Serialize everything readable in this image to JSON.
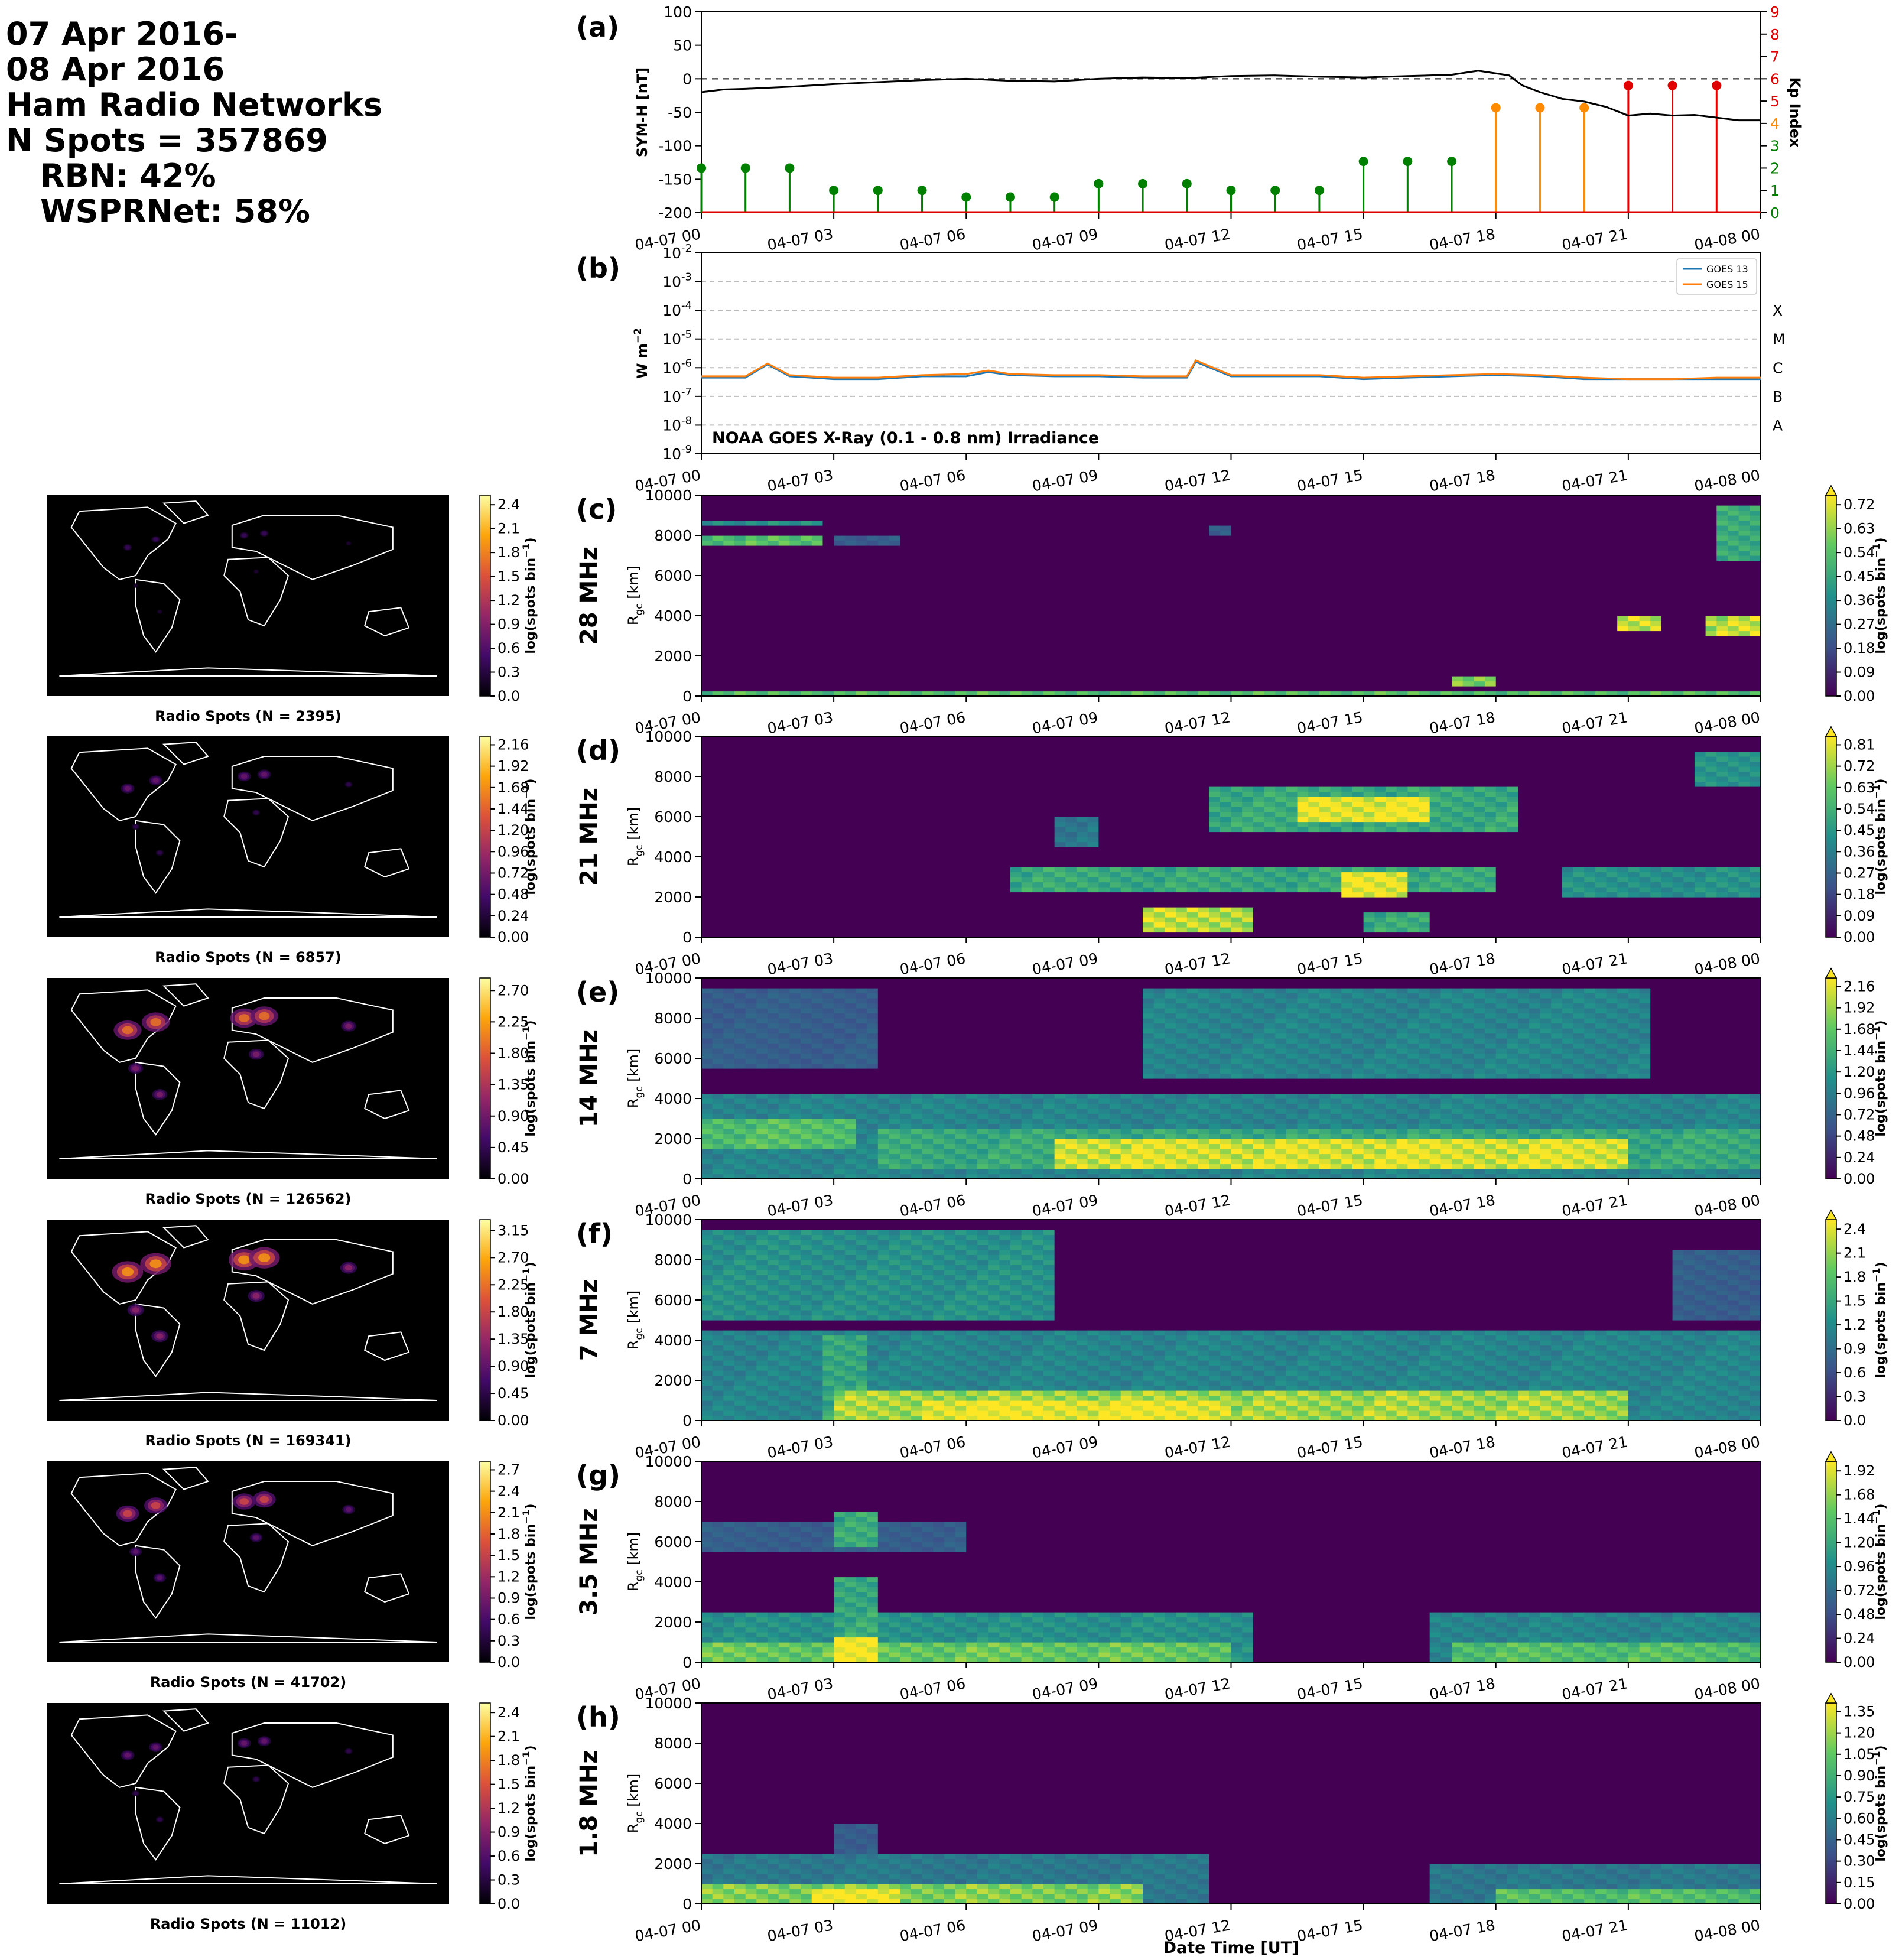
{
  "header": {
    "lines": [
      "07 Apr 2016-",
      "08 Apr 2016",
      "Ham Radio Networks",
      "N Spots = 357869",
      "RBN: 42%",
      "WSPRNet: 58%"
    ]
  },
  "colors": {
    "symh_line": "#000000",
    "kp_quiet": "#008000",
    "kp_active": "#FF8C00",
    "kp_storm": "#E00000",
    "goes13": "#1f77b4",
    "goes15": "#ff7f0e",
    "viridis": [
      "#440154",
      "#3b528b",
      "#21918c",
      "#5ec962",
      "#fde725"
    ],
    "inferno": [
      "#000004",
      "#420a68",
      "#932667",
      "#dd513a",
      "#fca50a",
      "#fcffa4"
    ]
  },
  "time_ticks": [
    "04-07 00",
    "04-07 03",
    "04-07 06",
    "04-07 09",
    "04-07 12",
    "04-07 15",
    "04-07 18",
    "04-07 21",
    "04-08 00"
  ],
  "xlabel": "Date Time [UT]",
  "chart_data": [
    {
      "id": "a",
      "panel_label": "(a)",
      "type": "line",
      "ylabel": "SYM-H [nT]",
      "ylim": [
        -200,
        100
      ],
      "yticks": [
        100,
        50,
        0,
        -50,
        -100,
        -150,
        -200
      ],
      "reference_line": 0,
      "series": [
        {
          "x_hours": [
            0,
            0.5,
            1,
            2,
            3,
            4,
            5,
            6,
            7,
            8,
            9,
            10,
            11,
            12,
            13,
            14,
            15,
            16,
            17,
            17.6,
            18,
            18.3,
            18.6,
            19,
            19.5,
            20,
            20.5,
            21,
            21.5,
            22,
            22.5,
            23,
            23.5,
            24
          ],
          "values": [
            -20,
            -16,
            -15,
            -12,
            -8,
            -5,
            -2,
            0,
            -3,
            -4,
            0,
            2,
            1,
            4,
            5,
            3,
            2,
            4,
            6,
            12,
            8,
            5,
            -10,
            -20,
            -30,
            -34,
            -42,
            -55,
            -52,
            -55,
            -54,
            -58,
            -62,
            -62
          ]
        }
      ],
      "secondary": {
        "ylabel": "Kp Index",
        "ylim": [
          0,
          9
        ],
        "yticks": [
          0,
          1,
          2,
          3,
          4,
          5,
          6,
          7,
          8,
          9
        ],
        "type": "stem",
        "x_hours": [
          0,
          1,
          2,
          3,
          4,
          5,
          6,
          7,
          8,
          9,
          10,
          11,
          12,
          13,
          14,
          15,
          16,
          17,
          18,
          19,
          20,
          21,
          22,
          23
        ],
        "values": [
          2,
          2,
          2,
          1,
          1,
          1,
          0.7,
          0.7,
          0.7,
          1.3,
          1.3,
          1.3,
          1,
          1,
          1,
          2.3,
          2.3,
          2.3,
          4.7,
          4.7,
          4.7,
          5.7,
          5.7,
          5.7
        ]
      }
    },
    {
      "id": "b",
      "panel_label": "(b)",
      "type": "line",
      "ylabel": "W m",
      "ylabel_sup": "−2",
      "yscale": "log",
      "ylim": [
        1e-09,
        0.01
      ],
      "yticks": [
        "10^-9",
        "10^-8",
        "10^-7",
        "10^-6",
        "10^-5",
        "10^-4",
        "10^-3",
        "10^-2"
      ],
      "flare_classes": [
        "A",
        "B",
        "C",
        "M",
        "X"
      ],
      "annotation": "NOAA GOES X-Ray (0.1 - 0.8 nm) Irradiance",
      "series": [
        {
          "name": "GOES 13",
          "x_hours": [
            0,
            1,
            1.5,
            2,
            3,
            4,
            5,
            6,
            6.5,
            7,
            8,
            9,
            10,
            11,
            11.2,
            12,
            13,
            14,
            15,
            16,
            17,
            18,
            19,
            20,
            21,
            22,
            23,
            24
          ],
          "values": [
            4.5e-07,
            4.5e-07,
            1.3e-06,
            5e-07,
            4e-07,
            4e-07,
            5e-07,
            5e-07,
            7e-07,
            5.5e-07,
            5e-07,
            5e-07,
            4.5e-07,
            4.5e-07,
            1.6e-06,
            5e-07,
            5e-07,
            5e-07,
            4e-07,
            4.5e-07,
            5e-07,
            5.5e-07,
            5e-07,
            4e-07,
            4e-07,
            4e-07,
            4e-07,
            4e-07
          ]
        },
        {
          "name": "GOES 15",
          "x_hours": [
            0,
            1,
            1.5,
            2,
            3,
            4,
            5,
            6,
            6.5,
            7,
            8,
            9,
            10,
            11,
            11.2,
            12,
            13,
            14,
            15,
            16,
            17,
            18,
            19,
            20,
            21,
            22,
            23,
            24
          ],
          "values": [
            5e-07,
            5e-07,
            1.4e-06,
            5.5e-07,
            4.5e-07,
            4.5e-07,
            5.5e-07,
            6e-07,
            8e-07,
            6e-07,
            5.5e-07,
            5.5e-07,
            5e-07,
            5e-07,
            1.8e-06,
            5.5e-07,
            5.5e-07,
            5.5e-07,
            4.5e-07,
            5e-07,
            5.5e-07,
            6e-07,
            5.5e-07,
            4.5e-07,
            4e-07,
            4e-07,
            4.5e-07,
            4.5e-07
          ]
        }
      ]
    },
    {
      "id": "c",
      "panel_label": "(c)",
      "band": "28 MHz",
      "type": "heatmap",
      "map_caption": "Radio Spots (N = 2395)",
      "ylabel": "R",
      "ylabel_sub": "gc",
      "ylabel_unit": " [km]",
      "ylim": [
        0,
        10000
      ],
      "yticks": [
        0,
        2000,
        4000,
        6000,
        8000,
        10000
      ],
      "map_cbar_ticks": [
        "0.0",
        "0.3",
        "0.6",
        "0.9",
        "1.2",
        "1.5",
        "1.8",
        "2.1",
        "2.4"
      ],
      "cbar_ticks": [
        "0.00",
        "0.09",
        "0.18",
        "0.27",
        "0.36",
        "0.45",
        "0.54",
        "0.63",
        "0.72"
      ],
      "cbar_label": "log(spots bin",
      "cbar_sup": "−1",
      "cbar_label_end": ")",
      "features": [
        [
          0,
          24,
          0,
          250,
          0.7
        ],
        [
          0,
          2.8,
          7500,
          8000,
          0.7
        ],
        [
          0,
          2.8,
          8400,
          8800,
          0.5
        ],
        [
          20.7,
          21.8,
          3300,
          4000,
          0.9
        ],
        [
          22.8,
          24,
          3000,
          4000,
          0.9
        ],
        [
          23,
          24,
          6800,
          9500,
          0.6
        ],
        [
          17,
          18,
          600,
          1000,
          0.8
        ],
        [
          3,
          4.5,
          7600,
          8000,
          0.3
        ],
        [
          11.5,
          12,
          8000,
          8400,
          0.3
        ]
      ]
    },
    {
      "id": "d",
      "panel_label": "(d)",
      "band": "21 MHz",
      "type": "heatmap",
      "map_caption": "Radio Spots (N = 6857)",
      "ylabel": "R",
      "ylabel_sub": "gc",
      "ylabel_unit": " [km]",
      "ylim": [
        0,
        10000
      ],
      "yticks": [
        0,
        2000,
        4000,
        6000,
        8000,
        10000
      ],
      "map_cbar_ticks": [
        "0.00",
        "0.24",
        "0.48",
        "0.72",
        "0.96",
        "1.20",
        "1.44",
        "1.68",
        "1.92",
        "2.16"
      ],
      "cbar_ticks": [
        "0.00",
        "0.09",
        "0.18",
        "0.27",
        "0.36",
        "0.45",
        "0.54",
        "0.63",
        "0.72",
        "0.81"
      ],
      "cbar_label": "log(spots bin",
      "cbar_sup": "−1",
      "cbar_label_end": ")",
      "features": [
        [
          11.5,
          18.5,
          5200,
          7500,
          0.6
        ],
        [
          13.5,
          16.5,
          5700,
          7000,
          1.0
        ],
        [
          7,
          18,
          2300,
          3500,
          0.6
        ],
        [
          14.5,
          16,
          2000,
          3200,
          1.0
        ],
        [
          10,
          12.5,
          300,
          1500,
          0.9
        ],
        [
          15,
          16.5,
          300,
          1200,
          0.6
        ],
        [
          19.5,
          24,
          2000,
          3500,
          0.5
        ],
        [
          22.5,
          24,
          7500,
          9300,
          0.5
        ],
        [
          8,
          9,
          4500,
          6000,
          0.4
        ]
      ]
    },
    {
      "id": "e",
      "panel_label": "(e)",
      "band": "14 MHz",
      "type": "heatmap",
      "map_caption": "Radio Spots (N = 126562)",
      "ylabel": "R",
      "ylabel_sub": "gc",
      "ylabel_unit": " [km]",
      "ylim": [
        0,
        10000
      ],
      "yticks": [
        0,
        2000,
        4000,
        6000,
        8000,
        10000
      ],
      "map_cbar_ticks": [
        "0.00",
        "0.45",
        "0.90",
        "1.35",
        "1.80",
        "2.25",
        "2.70"
      ],
      "cbar_ticks": [
        "0.00",
        "0.24",
        "0.48",
        "0.72",
        "0.96",
        "1.20",
        "1.44",
        "1.68",
        "1.92",
        "2.16"
      ],
      "cbar_label": "log(spots bin",
      "cbar_sup": "−1",
      "cbar_label_end": ")",
      "features": [
        [
          0,
          24,
          0,
          4200,
          0.45
        ],
        [
          0,
          3.5,
          1500,
          3000,
          0.7
        ],
        [
          4,
          24,
          600,
          2500,
          0.6
        ],
        [
          8,
          21,
          500,
          2000,
          0.95
        ],
        [
          10,
          21.5,
          5000,
          9500,
          0.45
        ],
        [
          0,
          4,
          5500,
          9500,
          0.3
        ]
      ]
    },
    {
      "id": "f",
      "panel_label": "(f)",
      "band": "7 MHz",
      "type": "heatmap",
      "map_caption": "Radio Spots (N = 169341)",
      "ylabel": "R",
      "ylabel_sub": "gc",
      "ylabel_unit": " [km]",
      "ylim": [
        0,
        10000
      ],
      "yticks": [
        0,
        2000,
        4000,
        6000,
        8000,
        10000
      ],
      "map_cbar_ticks": [
        "0.00",
        "0.45",
        "0.90",
        "1.35",
        "1.80",
        "2.25",
        "2.70",
        "3.15"
      ],
      "cbar_ticks": [
        "0.0",
        "0.3",
        "0.6",
        "0.9",
        "1.2",
        "1.5",
        "1.8",
        "2.1",
        "2.4"
      ],
      "cbar_label": "log(spots bin",
      "cbar_sup": "−1",
      "cbar_label_end": ")",
      "features": [
        [
          0,
          8,
          5000,
          9500,
          0.5
        ],
        [
          0,
          24,
          0,
          4500,
          0.45
        ],
        [
          3,
          21,
          0,
          1500,
          0.85
        ],
        [
          5,
          12,
          0,
          1000,
          1.0
        ],
        [
          2.8,
          3.8,
          0,
          4200,
          0.6
        ],
        [
          22,
          24,
          5000,
          8500,
          0.3
        ]
      ]
    },
    {
      "id": "g",
      "panel_label": "(g)",
      "band": "3.5 MHz",
      "type": "heatmap",
      "map_caption": "Radio Spots (N = 41702)",
      "ylabel": "R",
      "ylabel_sub": "gc",
      "ylabel_unit": " [km]",
      "ylim": [
        0,
        10000
      ],
      "yticks": [
        0,
        2000,
        4000,
        6000,
        8000,
        10000
      ],
      "map_cbar_ticks": [
        "0.0",
        "0.3",
        "0.6",
        "0.9",
        "1.2",
        "1.5",
        "1.8",
        "2.1",
        "2.4",
        "2.7"
      ],
      "cbar_ticks": [
        "0.00",
        "0.24",
        "0.48",
        "0.72",
        "0.96",
        "1.20",
        "1.44",
        "1.68",
        "1.92"
      ],
      "cbar_label": "log(spots bin",
      "cbar_sup": "−1",
      "cbar_label_end": ")",
      "features": [
        [
          0,
          12.5,
          0,
          2500,
          0.5
        ],
        [
          0,
          12,
          0,
          1000,
          0.75
        ],
        [
          3,
          4,
          0,
          1300,
          1.0
        ],
        [
          3,
          4,
          1300,
          4200,
          0.6
        ],
        [
          3,
          4,
          5700,
          7500,
          0.6
        ],
        [
          0,
          6,
          5500,
          7000,
          0.3
        ],
        [
          16.5,
          24,
          0,
          2500,
          0.45
        ],
        [
          17,
          24,
          0,
          900,
          0.7
        ]
      ]
    },
    {
      "id": "h",
      "panel_label": "(h)",
      "band": "1.8 MHz",
      "type": "heatmap",
      "map_caption": "Radio Spots (N = 11012)",
      "ylabel": "R",
      "ylabel_sub": "gc",
      "ylabel_unit": " [km]",
      "ylim": [
        0,
        10000
      ],
      "yticks": [
        0,
        2000,
        4000,
        6000,
        8000,
        10000
      ],
      "map_cbar_ticks": [
        "0.0",
        "0.3",
        "0.6",
        "0.9",
        "1.2",
        "1.5",
        "1.8",
        "2.1",
        "2.4"
      ],
      "cbar_ticks": [
        "0.00",
        "0.15",
        "0.30",
        "0.45",
        "0.60",
        "0.75",
        "0.90",
        "1.05",
        "1.20",
        "1.35"
      ],
      "cbar_label": "log(spots bin",
      "cbar_sup": "−1",
      "cbar_label_end": ")",
      "features": [
        [
          0,
          11.5,
          0,
          2500,
          0.4
        ],
        [
          0,
          10,
          0,
          1000,
          0.8
        ],
        [
          2.5,
          4.5,
          0,
          800,
          1.0
        ],
        [
          3,
          4,
          2000,
          4000,
          0.3
        ],
        [
          16.5,
          24,
          0,
          2000,
          0.4
        ],
        [
          18,
          24,
          0,
          800,
          0.7
        ]
      ]
    }
  ]
}
